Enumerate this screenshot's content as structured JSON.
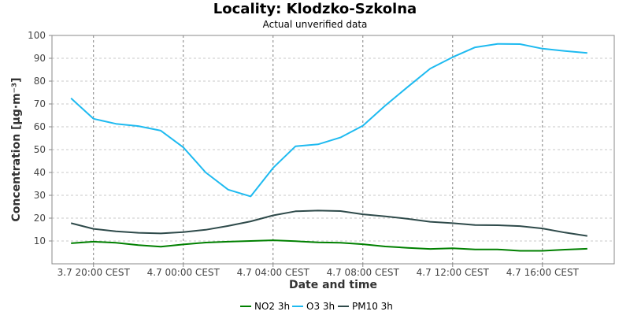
{
  "chart_data": {
    "type": "line",
    "title": "Locality: Klodzko-Szkolna",
    "subtitle": "Actual unverified data",
    "xlabel": "Date and time",
    "ylabel": "Concentration [µg·m⁻³]",
    "ylim": [
      0,
      100
    ],
    "yticks": [
      10,
      20,
      30,
      40,
      50,
      60,
      70,
      80,
      90,
      100
    ],
    "x_hours": [
      -1,
      0,
      1,
      2,
      3,
      4,
      5,
      6,
      7,
      8,
      9,
      10,
      11,
      12,
      13,
      14,
      15,
      16,
      17,
      18,
      19,
      20,
      21,
      22,
      23
    ],
    "xticks": [
      {
        "hour": 0,
        "label": "3.7 20:00 CEST"
      },
      {
        "hour": 4,
        "label": "4.7 00:00 CEST"
      },
      {
        "hour": 8,
        "label": "4.7 04:00 CEST"
      },
      {
        "hour": 12,
        "label": "4.7 08:00 CEST"
      },
      {
        "hour": 16,
        "label": "4.7 12:00 CEST"
      },
      {
        "hour": 20,
        "label": "4.7 16:00 CEST"
      }
    ],
    "grid": true,
    "legend_position": "bottom-center",
    "series": [
      {
        "name": "NO2 3h",
        "color": "#008000",
        "values": [
          9,
          9.7,
          9.2,
          8.2,
          7.5,
          8.5,
          9.3,
          9.7,
          10,
          10.3,
          9.9,
          9.4,
          9.2,
          8.6,
          7.6,
          7,
          6.5,
          6.8,
          6.3,
          6.3,
          5.7,
          5.7,
          6.2,
          6.6,
          null
        ]
      },
      {
        "name": "O3 3h",
        "color": "#1ebaf0",
        "values": [
          72.5,
          63.5,
          61.3,
          60.3,
          58.3,
          51,
          40,
          32.5,
          29.5,
          42,
          51.5,
          52.3,
          55.3,
          60.5,
          69.3,
          77.5,
          85.5,
          90.5,
          94.8,
          96.3,
          96.2,
          94.2,
          93.2,
          92.3,
          null
        ]
      },
      {
        "name": "PM10 3h",
        "color": "#2e4a4a",
        "values": [
          17.8,
          15.3,
          14.2,
          13.6,
          13.3,
          13.9,
          14.9,
          16.6,
          18.6,
          21.2,
          23,
          23.3,
          23.1,
          21.7,
          20.8,
          19.7,
          18.4,
          17.8,
          17,
          16.9,
          16.5,
          15.5,
          13.7,
          12.2,
          null
        ]
      }
    ]
  }
}
